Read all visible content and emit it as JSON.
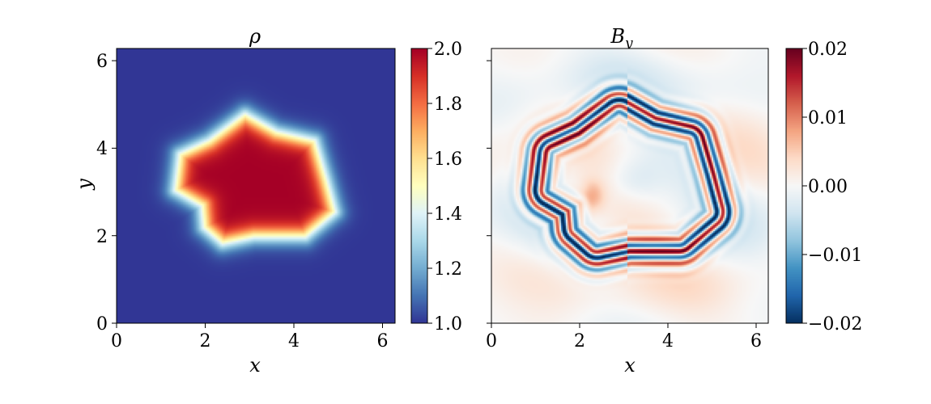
{
  "chart_data": [
    {
      "type": "heatmap",
      "title": "ρ",
      "xlabel": "x",
      "ylabel": "y",
      "xlim": [
        0,
        6.283
      ],
      "ylim": [
        0,
        6.283
      ],
      "xticks": [
        "0",
        "2",
        "4",
        "6"
      ],
      "yticks": [
        "0",
        "2",
        "4",
        "6"
      ],
      "colormap": "RdYlBu_r",
      "colorbar": {
        "min": 1.0,
        "max": 2.0,
        "ticks": [
          "1.0",
          "1.2",
          "1.4",
          "1.6",
          "1.8",
          "2.0"
        ]
      },
      "background_value": 1.0,
      "interior_value": 2.0,
      "region_boundary": [
        [
          2.9,
          4.75
        ],
        [
          3.6,
          4.35
        ],
        [
          4.45,
          4.15
        ],
        [
          4.7,
          3.3
        ],
        [
          4.9,
          2.55
        ],
        [
          4.25,
          2.0
        ],
        [
          3.1,
          2.0
        ],
        [
          2.4,
          1.85
        ],
        [
          2.0,
          2.2
        ],
        [
          1.95,
          2.7
        ],
        [
          1.35,
          3.05
        ],
        [
          1.45,
          3.85
        ],
        [
          2.1,
          4.15
        ]
      ],
      "grid": false
    },
    {
      "type": "heatmap",
      "title": "B_y",
      "xlabel": "x",
      "ylabel": "",
      "xlim": [
        0,
        6.283
      ],
      "ylim": [
        0,
        6.283
      ],
      "xticks": [
        "0",
        "2",
        "4",
        "6"
      ],
      "colormap": "RdBu_r",
      "colorbar": {
        "min": -0.02,
        "max": 0.02,
        "ticks": [
          "−0.02",
          "−0.01",
          "0.00",
          "0.01",
          "0.02"
        ]
      },
      "region_boundary": [
        [
          2.9,
          4.75
        ],
        [
          3.6,
          4.35
        ],
        [
          4.45,
          4.15
        ],
        [
          4.7,
          3.3
        ],
        [
          4.9,
          2.55
        ],
        [
          4.25,
          2.0
        ],
        [
          3.1,
          2.0
        ],
        [
          2.4,
          1.85
        ],
        [
          2.0,
          2.2
        ],
        [
          1.95,
          2.7
        ],
        [
          1.35,
          3.05
        ],
        [
          1.45,
          3.85
        ],
        [
          2.1,
          4.15
        ]
      ],
      "ring_amplitude": 0.02,
      "grid": false
    }
  ],
  "colors": {
    "rdbu_stops": [
      "#053061",
      "#2166ac",
      "#4393c3",
      "#92c5de",
      "#d1e5f0",
      "#f7f7f7",
      "#fddbc7",
      "#f4a582",
      "#d6604d",
      "#b2182b",
      "#67001f"
    ],
    "rdylbu_stops": [
      "#313695",
      "#4575b4",
      "#74add1",
      "#abd9e9",
      "#e0f3f8",
      "#ffffbf",
      "#fee090",
      "#fdae61",
      "#f46d43",
      "#d73027",
      "#a50026"
    ]
  }
}
